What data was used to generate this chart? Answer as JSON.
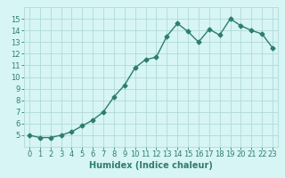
{
  "x": [
    0,
    1,
    2,
    3,
    4,
    5,
    6,
    7,
    8,
    9,
    10,
    11,
    12,
    13,
    14,
    15,
    16,
    17,
    18,
    19,
    20,
    21,
    22,
    23
  ],
  "y": [
    5.0,
    4.8,
    4.8,
    5.0,
    5.3,
    5.8,
    6.3,
    7.0,
    8.3,
    9.3,
    10.8,
    11.5,
    11.7,
    13.5,
    14.6,
    13.9,
    13.0,
    14.1,
    13.6,
    15.0,
    14.4,
    14.0,
    13.7,
    12.5
  ],
  "line_color": "#2e7d6e",
  "marker": "D",
  "marker_size": 2.5,
  "line_width": 1.0,
  "bg_color": "#d7f5f5",
  "grid_color": "#b0d9d9",
  "xlabel": "Humidex (Indice chaleur)",
  "xlabel_fontsize": 7,
  "tick_fontsize": 6,
  "ylim": [
    4,
    16
  ],
  "xlim": [
    -0.5,
    23.5
  ],
  "yticks": [
    5,
    6,
    7,
    8,
    9,
    10,
    11,
    12,
    13,
    14,
    15
  ],
  "xticks": [
    0,
    1,
    2,
    3,
    4,
    5,
    6,
    7,
    8,
    9,
    10,
    11,
    12,
    13,
    14,
    15,
    16,
    17,
    18,
    19,
    20,
    21,
    22,
    23
  ]
}
